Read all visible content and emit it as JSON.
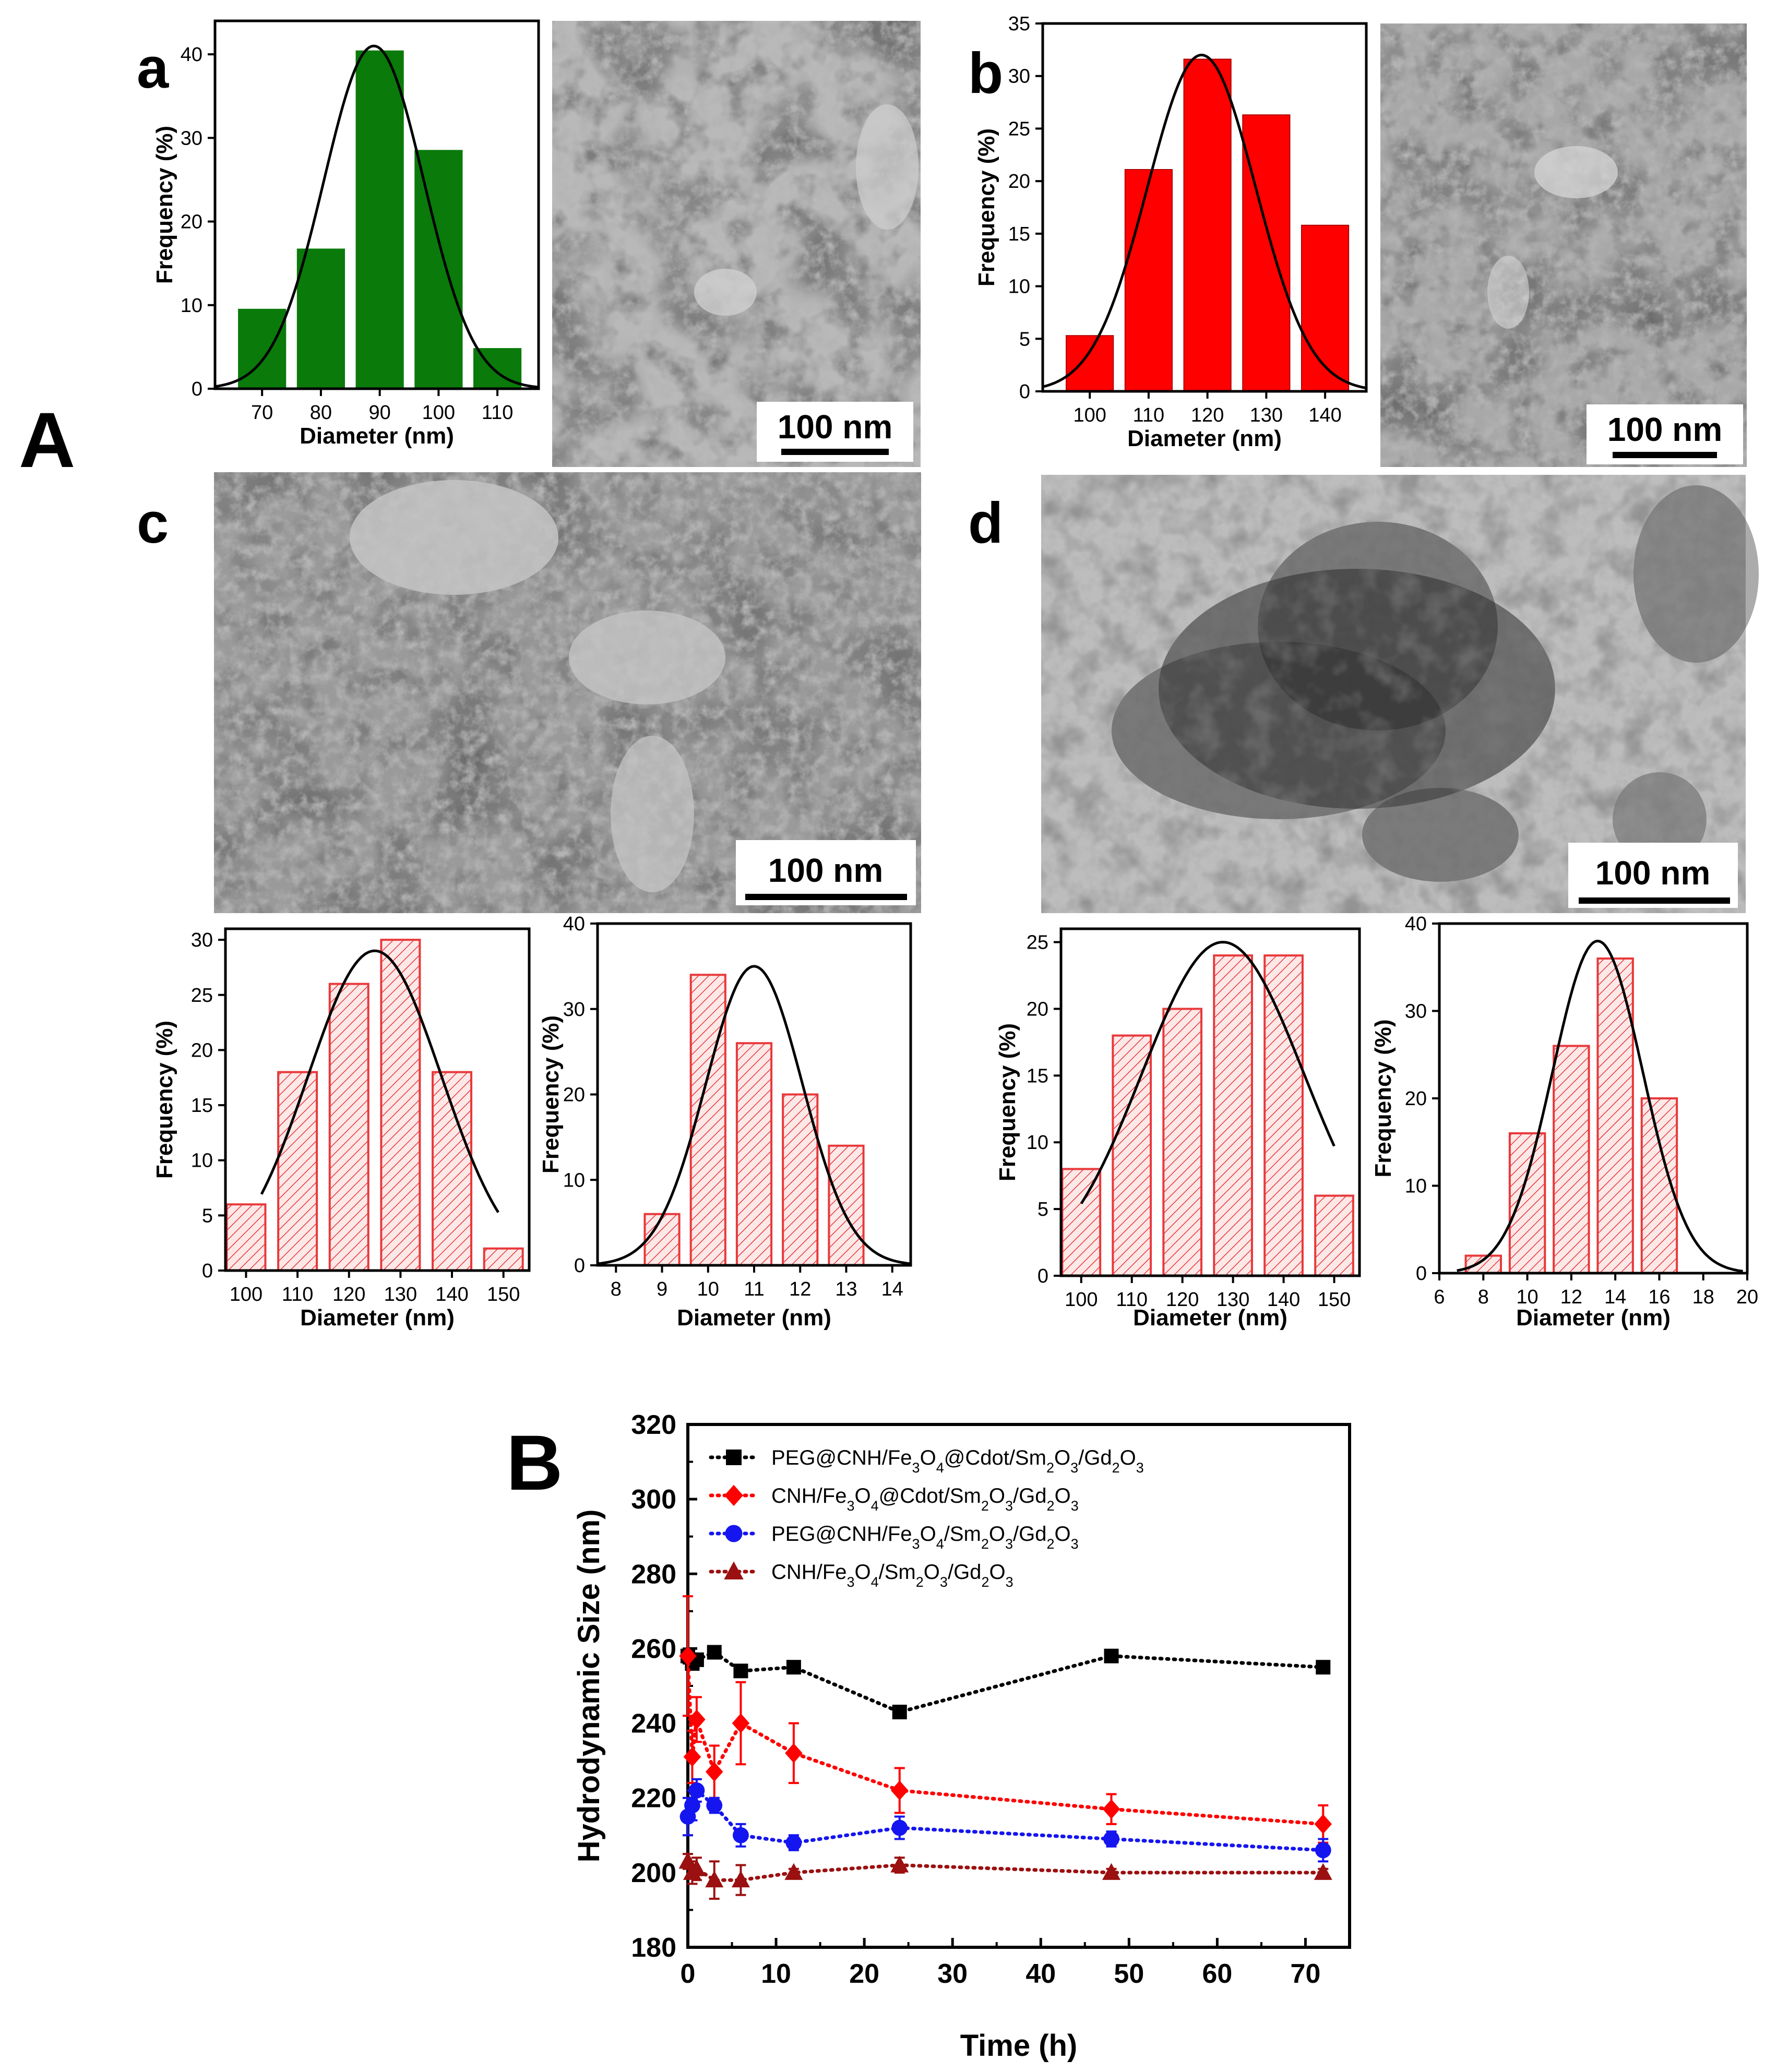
{
  "panel_labels": {
    "A": "A",
    "a": "a",
    "b": "b",
    "c": "c",
    "d": "d",
    "B": "B"
  },
  "scale_bar": "100 nm",
  "colors": {
    "green": "#0a7a0a",
    "red": "#ff0000",
    "hatch_red": "#e8393b",
    "black": "#000000",
    "blue": "#1515f0",
    "darkred": "#9b1010"
  },
  "micrograph_names": {
    "a": "TEM micrograph panel a",
    "b": "TEM micrograph panel b",
    "c": "TEM micrograph panel c",
    "d": "TEM micrograph panel d"
  },
  "chart_data": [
    {
      "id": "a",
      "type": "bar",
      "fill": "solid-green",
      "xlabel": "Diameter (nm)",
      "ylabel": "Frequency (%)",
      "xlim": [
        62,
        117
      ],
      "ylim": [
        0,
        44
      ],
      "x_ticks": [
        70,
        80,
        90,
        100,
        110
      ],
      "y_ticks": [
        0,
        10,
        20,
        30,
        40
      ],
      "categories": [
        70,
        80,
        90,
        100,
        110
      ],
      "bin_width": 8,
      "values": [
        9.5,
        16.7,
        40.4,
        28.5,
        4.8
      ],
      "fit": {
        "type": "gaussian",
        "peak": 41,
        "center": 89,
        "sigma": 8.5
      }
    },
    {
      "id": "b",
      "type": "bar",
      "fill": "solid-red",
      "xlabel": "Diameter (nm)",
      "ylabel": "Frequency (%)",
      "xlim": [
        92,
        147
      ],
      "ylim": [
        0,
        35
      ],
      "x_ticks": [
        100,
        110,
        120,
        130,
        140
      ],
      "y_ticks": [
        0,
        5,
        10,
        15,
        20,
        25,
        30,
        35
      ],
      "categories": [
        100,
        110,
        120,
        130,
        140
      ],
      "bin_width": 8,
      "values": [
        5.3,
        21.1,
        31.6,
        26.3,
        15.8
      ],
      "fit": {
        "type": "gaussian",
        "peak": 32,
        "center": 119,
        "sigma": 9.2
      }
    },
    {
      "id": "c1",
      "type": "bar",
      "fill": "hatched-red",
      "xlabel": "Diameter (nm)",
      "ylabel": "Frequency (%)",
      "xlim": [
        96,
        155
      ],
      "ylim": [
        0,
        31
      ],
      "x_ticks": [
        100,
        110,
        120,
        130,
        140,
        150
      ],
      "y_ticks": [
        0,
        5,
        10,
        15,
        20,
        25,
        30
      ],
      "categories": [
        100,
        110,
        120,
        130,
        140,
        150
      ],
      "bin_width": 7.5,
      "values": [
        6,
        18,
        26,
        30,
        18,
        2
      ],
      "fit": {
        "type": "gaussian",
        "peak": 29,
        "center": 125,
        "sigma": 13,
        "x_start": 103,
        "x_end": 149
      }
    },
    {
      "id": "c2",
      "type": "bar",
      "fill": "hatched-red",
      "xlabel": "Diameter (nm)",
      "ylabel": "Frequency (%)",
      "xlim": [
        7.6,
        14.4
      ],
      "ylim": [
        0,
        40
      ],
      "x_ticks": [
        8,
        9,
        10,
        11,
        12,
        13,
        14
      ],
      "y_ticks": [
        0,
        10,
        20,
        30,
        40
      ],
      "categories": [
        9,
        10,
        11,
        12,
        13
      ],
      "bin_width": 0.75,
      "values": [
        6,
        34,
        26,
        20,
        14
      ],
      "fit": {
        "type": "gaussian",
        "peak": 35,
        "center": 11,
        "sigma": 1.05,
        "x_start": 7.6,
        "x_end": 14.4
      }
    },
    {
      "id": "d1",
      "type": "bar",
      "fill": "hatched-red",
      "xlabel": "Diameter (nm)",
      "ylabel": "Frequency (%)",
      "xlim": [
        96,
        155
      ],
      "ylim": [
        0,
        26
      ],
      "x_ticks": [
        100,
        110,
        120,
        130,
        140,
        150
      ],
      "y_ticks": [
        0,
        5,
        10,
        15,
        20,
        25
      ],
      "categories": [
        100,
        110,
        120,
        130,
        140,
        150
      ],
      "bin_width": 7.5,
      "values": [
        8,
        18,
        20,
        24,
        24,
        6
      ],
      "fit": {
        "type": "gaussian",
        "peak": 25,
        "center": 128,
        "sigma": 16,
        "x_start": 100,
        "x_end": 150
      }
    },
    {
      "id": "d2",
      "type": "bar",
      "fill": "hatched-red",
      "xlabel": "Diameter (nm)",
      "ylabel": "Frequency (%)",
      "xlim": [
        6,
        20
      ],
      "ylim": [
        0,
        40
      ],
      "x_ticks": [
        6,
        8,
        10,
        12,
        14,
        16,
        18,
        20
      ],
      "y_ticks": [
        0,
        10,
        20,
        30,
        40
      ],
      "categories": [
        8,
        10,
        12,
        14,
        16
      ],
      "bin_width": 1.6,
      "values": [
        2,
        16,
        26,
        36,
        20
      ],
      "fit": {
        "type": "gaussian",
        "peak": 38,
        "center": 13.2,
        "sigma": 2.05,
        "x_start": 6.8,
        "x_end": 19.8
      }
    },
    {
      "id": "B",
      "type": "line",
      "xlabel": "Time (h)",
      "ylabel": "Hydrodynamic Size (nm)",
      "xlim": [
        0,
        75
      ],
      "ylim": [
        180,
        320
      ],
      "x_ticks": [
        0,
        10,
        20,
        30,
        40,
        50,
        60,
        70
      ],
      "y_ticks": [
        180,
        200,
        220,
        240,
        260,
        280,
        300,
        320
      ],
      "legend_position": "top-left",
      "series": [
        {
          "name_parts": [
            [
              "PEG@CNH/Fe",
              "n"
            ],
            [
              "3",
              "s"
            ],
            [
              "O",
              "n"
            ],
            [
              "4",
              "s"
            ],
            [
              "@Cdot/Sm",
              "n"
            ],
            [
              "2",
              "s"
            ],
            [
              "O",
              "n"
            ],
            [
              "3",
              "s"
            ],
            [
              "/Gd",
              "n"
            ],
            [
              "2",
              "s"
            ],
            [
              "O",
              "n"
            ],
            [
              "3",
              "s"
            ]
          ],
          "color": "#000000",
          "marker": "square",
          "x": [
            0,
            0.5,
            1,
            3,
            6,
            12,
            24,
            48,
            72
          ],
          "y": [
            258,
            256,
            257,
            259,
            254,
            255,
            243,
            258,
            255
          ],
          "err": [
            2,
            1,
            1,
            1,
            1,
            1,
            1,
            1,
            1
          ]
        },
        {
          "name_parts": [
            [
              "CNH/Fe",
              "n"
            ],
            [
              "3",
              "s"
            ],
            [
              "O",
              "n"
            ],
            [
              "4",
              "s"
            ],
            [
              "@Cdot/Sm",
              "n"
            ],
            [
              "2",
              "s"
            ],
            [
              "O",
              "n"
            ],
            [
              "3",
              "s"
            ],
            [
              "/Gd",
              "n"
            ],
            [
              "2",
              "s"
            ],
            [
              "O",
              "n"
            ],
            [
              "3",
              "s"
            ]
          ],
          "color": "#ff0000",
          "marker": "diamond",
          "x": [
            0,
            0.5,
            1,
            3,
            6,
            12,
            24,
            48,
            72
          ],
          "y": [
            258,
            231,
            241,
            227,
            240,
            232,
            222,
            217,
            213
          ],
          "err": [
            16,
            7,
            6,
            7,
            11,
            8,
            6,
            4,
            5
          ]
        },
        {
          "name_parts": [
            [
              "PEG@CNH/Fe",
              "n"
            ],
            [
              "3",
              "s"
            ],
            [
              "O",
              "n"
            ],
            [
              "4",
              "s"
            ],
            [
              "/Sm",
              "n"
            ],
            [
              "2",
              "s"
            ],
            [
              "O",
              "n"
            ],
            [
              "3",
              "s"
            ],
            [
              "/Gd",
              "n"
            ],
            [
              "2",
              "s"
            ],
            [
              "O",
              "n"
            ],
            [
              "3",
              "s"
            ]
          ],
          "color": "#1515f0",
          "marker": "circle",
          "x": [
            0,
            0.5,
            1,
            3,
            6,
            12,
            24,
            48,
            72
          ],
          "y": [
            215,
            218,
            222,
            218,
            210,
            208,
            212,
            209,
            206
          ],
          "err": [
            5,
            4,
            3,
            2,
            3,
            2,
            3,
            2,
            3
          ]
        },
        {
          "name_parts": [
            [
              "CNH/Fe",
              "n"
            ],
            [
              "3",
              "s"
            ],
            [
              "O",
              "n"
            ],
            [
              "4",
              "s"
            ],
            [
              "/Sm",
              "n"
            ],
            [
              "2",
              "s"
            ],
            [
              "O",
              "n"
            ],
            [
              "3",
              "s"
            ],
            [
              "/Gd",
              "n"
            ],
            [
              "2",
              "s"
            ],
            [
              "O",
              "n"
            ],
            [
              "3",
              "s"
            ]
          ],
          "color": "#9b1010",
          "marker": "triangle",
          "x": [
            0,
            0.5,
            1,
            3,
            6,
            12,
            24,
            48,
            72
          ],
          "y": [
            203,
            200,
            201,
            198,
            198,
            200,
            202,
            200,
            200
          ],
          "err": [
            2,
            3,
            3,
            5,
            4,
            1,
            2,
            1,
            1
          ]
        }
      ]
    }
  ]
}
